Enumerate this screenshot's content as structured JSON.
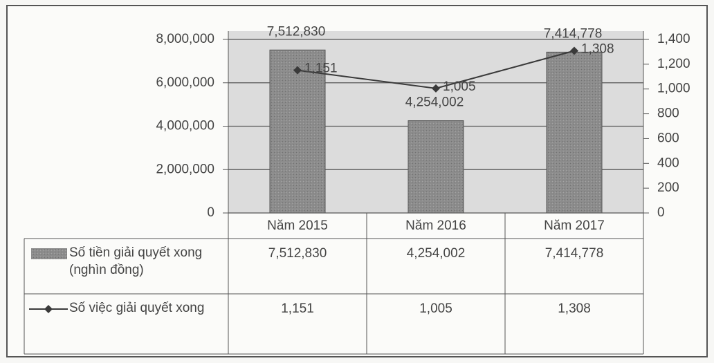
{
  "chart_data": {
    "type": "bar",
    "categories": [
      "Năm 2015",
      "Năm 2016",
      "Năm 2017"
    ],
    "series": [
      {
        "name": "Số tiền giải quyết xong (nghìn đồng)",
        "type": "bar",
        "color": "#8c8c8c",
        "values": [
          7512830,
          4254002,
          7414778
        ],
        "value_labels": [
          "7,512,830",
          "4,254,002",
          "7,414,778"
        ]
      },
      {
        "name": "Số việc giải quyết xong",
        "type": "line",
        "axis": "y2",
        "color": "#3a3a3a",
        "values": [
          1151,
          1005,
          1308
        ],
        "value_labels": [
          "1,151",
          "1,005",
          "1,308"
        ]
      }
    ],
    "ylim": [
      0,
      8000000
    ],
    "yticks": [
      0,
      {
        "value": 2000000,
        "label": "2,000,000"
      },
      {
        "value": 4000000,
        "label": "4,000,000"
      },
      {
        "value": 6000000,
        "label": "6,000,000"
      },
      {
        "value": 8000000,
        "label": "8,000,000"
      }
    ],
    "y2lim": [
      0,
      1400
    ],
    "y2ticks": [
      0,
      200,
      400,
      600,
      800,
      {
        "value": 1000,
        "label": "1,000"
      },
      {
        "value": 1200,
        "label": "1,200"
      },
      {
        "value": 1400,
        "label": "1,400"
      }
    ],
    "grid": true
  }
}
